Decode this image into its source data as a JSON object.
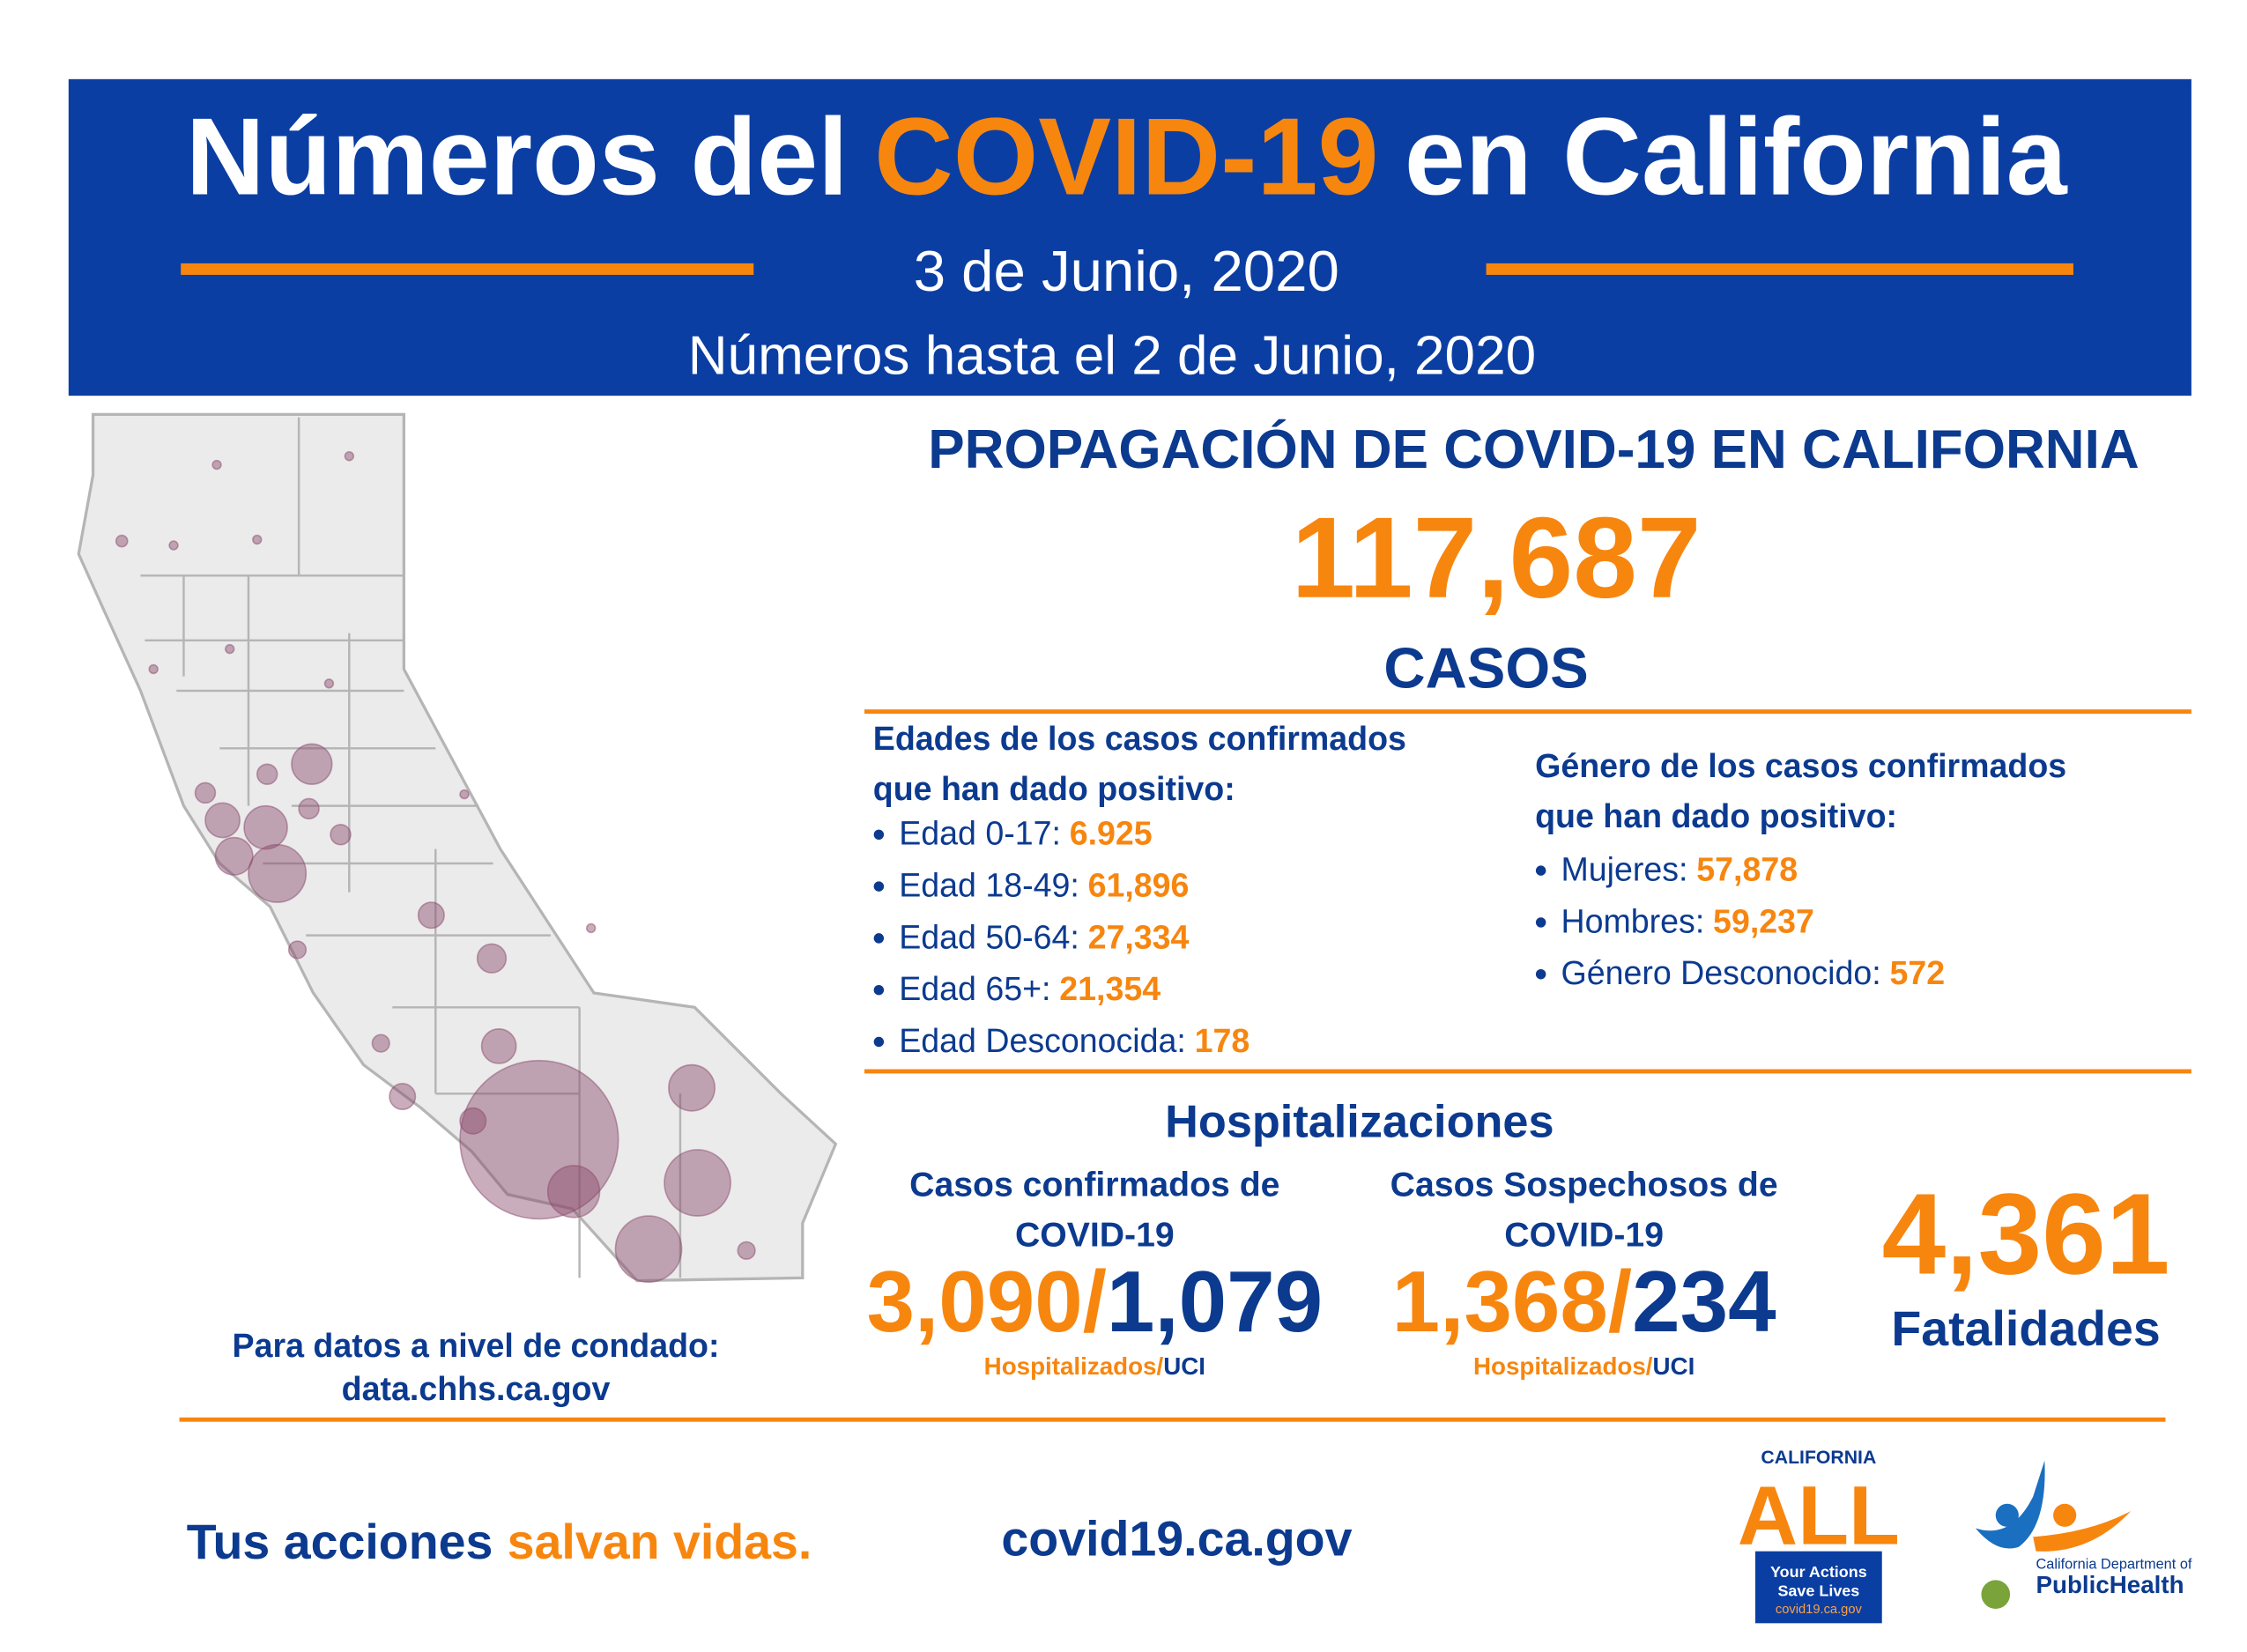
{
  "header": {
    "title": {
      "before": "Números del",
      "highlight": "COVID-19",
      "after": "en California"
    },
    "date": "3 de Junio, 2020",
    "subtitle": "Números hasta el 2 de Junio, 2020"
  },
  "spread": {
    "heading": "PROPAGACIÓN DE COVID-19 EN CALIFORNIA",
    "cases": "117,687",
    "cases_label": "CASOS"
  },
  "ages": {
    "heading": [
      "Edades de los casos confirmados",
      "que han dado positivo:"
    ],
    "items": [
      {
        "label": "Edad 0-17:",
        "value": "6.925"
      },
      {
        "label": "Edad 18-49:",
        "value": "61,896"
      },
      {
        "label": "Edad 50-64:",
        "value": "27,334"
      },
      {
        "label": "Edad 65+:",
        "value": "21,354"
      },
      {
        "label": "Edad Desconocida:",
        "value": "178"
      }
    ]
  },
  "gender": {
    "heading": [
      "Género de los casos confirmados",
      "que han dado positivo:"
    ],
    "items": [
      {
        "label": "Mujeres:",
        "value": "57,878"
      },
      {
        "label": "Hombres:",
        "value": "59,237"
      },
      {
        "label": "Género Desconocido:",
        "value": "572"
      }
    ]
  },
  "hospital": {
    "heading": "Hospitalizaciones",
    "confirmed": {
      "title": [
        "Casos confirmados de",
        "COVID-19"
      ],
      "hospitalized": "3,090/",
      "icu": "1,079",
      "hospitalized_label": "Hospitalizados/",
      "icu_label": "UCI"
    },
    "suspected": {
      "title": [
        "Casos Sospechosos de",
        "COVID-19"
      ],
      "hospitalized": "1,368/",
      "icu": "234",
      "hospitalized_label": "Hospitalizados/",
      "icu_label": "UCI"
    }
  },
  "deaths": {
    "value": "4,361",
    "label": "Fatalidades"
  },
  "county": {
    "text": "Para datos a nivel de condado:",
    "url": "data.chhs.ca.gov"
  },
  "footer": {
    "slogan_start": "Tus acciones",
    "slogan_highlight": "salvan vidas.",
    "website": "covid19.ca.gov"
  },
  "logos": {
    "ca_all": {
      "top": "CALIFORNIA",
      "big": "ALL",
      "tag1": "Your Actions",
      "tag2": "Save Lives",
      "url": "covid19.ca.gov"
    },
    "cdph": {
      "line1": "California Department of",
      "line2": "PublicHealth"
    }
  }
}
